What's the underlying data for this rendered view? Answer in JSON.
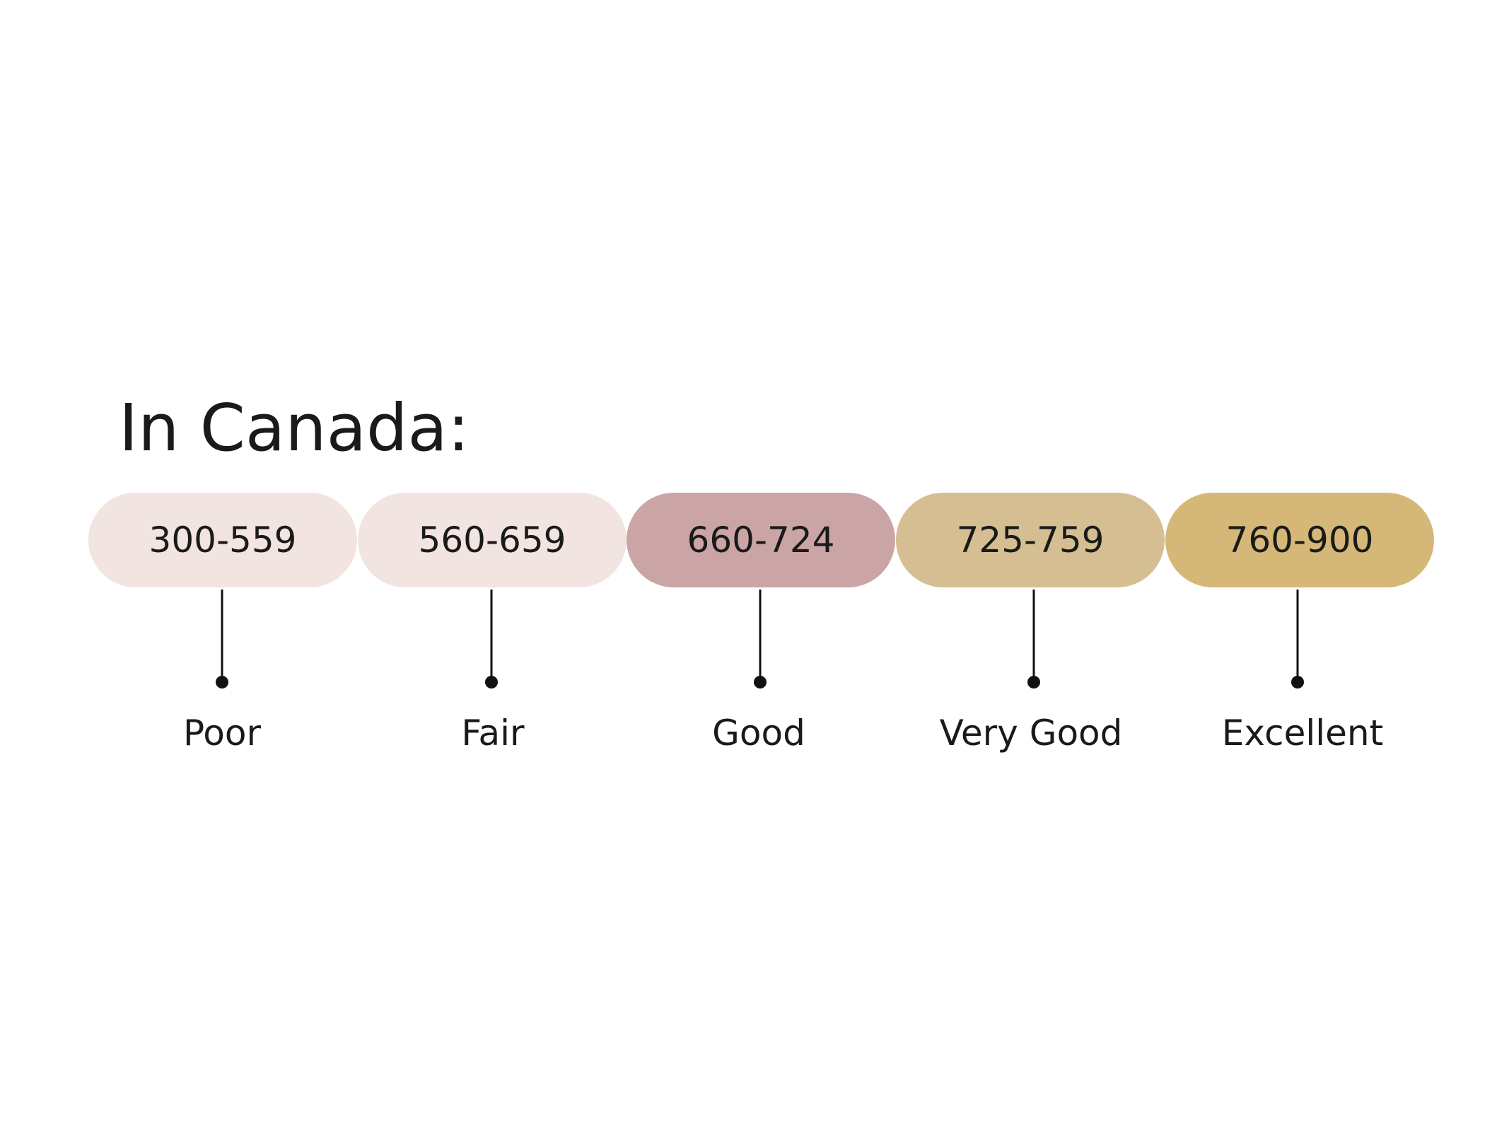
{
  "title": "In Canada:",
  "bands": [
    {
      "range": "300-559",
      "label": "Poor",
      "color": "#f2e4e0"
    },
    {
      "range": "560-659",
      "label": "Fair",
      "color": "#f2e4e0"
    },
    {
      "range": "660-724",
      "label": "Good",
      "color": "#cba5a5"
    },
    {
      "range": "725-759",
      "label": "Very Good",
      "color": "#d5bf92"
    },
    {
      "range": "760-900",
      "label": "Excellent",
      "color": "#d5b878"
    }
  ]
}
